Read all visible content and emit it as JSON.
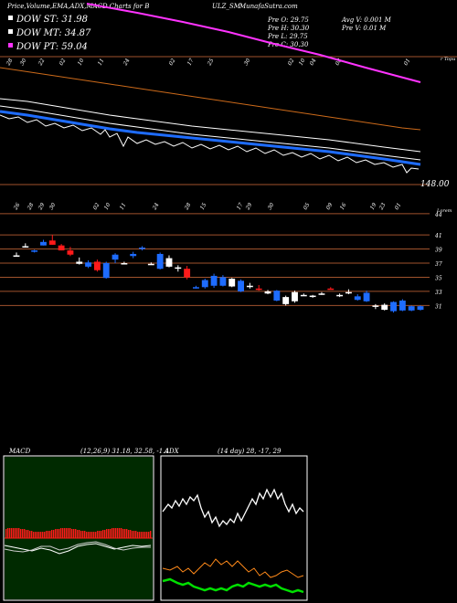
{
  "header": {
    "title": "Price,Volume,EMA,ADX,MACD Charts for B",
    "symbol": "ULZ_SM",
    "site": "MunafaSutra.com"
  },
  "legend": [
    {
      "label": "DOW ST: 31.98",
      "color": "#ffffff"
    },
    {
      "label": "DOW MT: 34.87",
      "color": "#ffffff"
    },
    {
      "label": "DOW PT: 59.04",
      "color": "#ff33ff"
    }
  ],
  "ohlc": {
    "open": "Pre  O: 29.75",
    "high": "Pre  H: 30.30",
    "low": "Pre  L: 29.75",
    "close": "Pre  C: 30.30"
  },
  "volume_info": {
    "avg": "Avg V: 0.001 M",
    "pre": "Pre  V: 0.01 M"
  },
  "upper_panel": {
    "right_label_top": "r Topu",
    "price_marker": "148.00",
    "dates": [
      "28",
      "30",
      "22",
      "02",
      "10",
      "11",
      "24",
      "02",
      "17",
      "25",
      "30",
      "02",
      "10",
      "04",
      "08",
      "01"
    ]
  },
  "candles_panel": {
    "right_label_top": "Lorem",
    "dates": [
      "26",
      "28",
      "29",
      "30",
      "02",
      "10",
      "11",
      "24",
      "28",
      "15",
      "17",
      "29",
      "30",
      "05",
      "09",
      "16",
      "19",
      "23",
      "01"
    ],
    "price_ticks": [
      "44",
      "41",
      "39",
      "37",
      "35",
      "33",
      "31"
    ]
  },
  "chart_data": {
    "type": "candlestick",
    "ylim": [
      29.5,
      44.5
    ],
    "candles": [
      {
        "o": 38.1,
        "h": 38.5,
        "l": 37.9,
        "c": 38.1,
        "color": "white"
      },
      {
        "o": 39.4,
        "h": 39.8,
        "l": 39.2,
        "c": 39.4,
        "color": "white"
      },
      {
        "o": 38.6,
        "h": 38.9,
        "l": 38.5,
        "c": 38.8,
        "color": "blue"
      },
      {
        "o": 40.0,
        "h": 40.3,
        "l": 39.5,
        "c": 39.5,
        "color": "blue"
      },
      {
        "o": 40.2,
        "h": 41.0,
        "l": 39.6,
        "c": 39.6,
        "color": "red"
      },
      {
        "o": 39.5,
        "h": 39.7,
        "l": 38.8,
        "c": 38.8,
        "color": "red"
      },
      {
        "o": 38.8,
        "h": 39.3,
        "l": 38.0,
        "c": 38.2,
        "color": "red"
      },
      {
        "o": 37.2,
        "h": 37.8,
        "l": 36.8,
        "c": 36.9,
        "color": "white"
      },
      {
        "o": 37.1,
        "h": 37.4,
        "l": 36.3,
        "c": 36.5,
        "color": "blue"
      },
      {
        "o": 36.0,
        "h": 37.5,
        "l": 35.8,
        "c": 37.2,
        "color": "red"
      },
      {
        "o": 37.0,
        "h": 37.2,
        "l": 34.8,
        "c": 34.9,
        "color": "blue"
      },
      {
        "o": 37.5,
        "h": 38.4,
        "l": 37.0,
        "c": 38.2,
        "color": "blue"
      },
      {
        "o": 37.0,
        "h": 37.2,
        "l": 36.9,
        "c": 37.0,
        "color": "white"
      },
      {
        "o": 38.0,
        "h": 38.6,
        "l": 37.7,
        "c": 38.3,
        "color": "blue"
      },
      {
        "o": 39.0,
        "h": 39.4,
        "l": 38.8,
        "c": 39.2,
        "color": "blue"
      },
      {
        "o": 36.9,
        "h": 37.1,
        "l": 36.8,
        "c": 36.9,
        "color": "white"
      },
      {
        "o": 38.3,
        "h": 38.5,
        "l": 36.1,
        "c": 36.2,
        "color": "blue"
      },
      {
        "o": 37.7,
        "h": 38.1,
        "l": 36.4,
        "c": 36.5,
        "color": "white"
      },
      {
        "o": 36.4,
        "h": 36.7,
        "l": 35.8,
        "c": 36.3,
        "color": "white"
      },
      {
        "o": 36.2,
        "h": 36.6,
        "l": 34.7,
        "c": 35.0,
        "color": "red"
      },
      {
        "o": 33.6,
        "h": 33.8,
        "l": 33.4,
        "c": 33.6,
        "color": "blue"
      },
      {
        "o": 33.6,
        "h": 34.8,
        "l": 33.4,
        "c": 34.6,
        "color": "blue"
      },
      {
        "o": 33.8,
        "h": 35.5,
        "l": 33.5,
        "c": 35.2,
        "color": "blue"
      },
      {
        "o": 35.0,
        "h": 35.3,
        "l": 33.7,
        "c": 33.8,
        "color": "blue"
      },
      {
        "o": 33.7,
        "h": 34.9,
        "l": 33.6,
        "c": 34.8,
        "color": "white"
      },
      {
        "o": 34.5,
        "h": 34.7,
        "l": 32.9,
        "c": 33.0,
        "color": "blue"
      },
      {
        "o": 33.8,
        "h": 34.2,
        "l": 33.4,
        "c": 33.7,
        "color": "white"
      },
      {
        "o": 33.4,
        "h": 33.9,
        "l": 33.1,
        "c": 33.4,
        "color": "red"
      },
      {
        "o": 32.7,
        "h": 33.2,
        "l": 32.6,
        "c": 33.0,
        "color": "white"
      },
      {
        "o": 33.1,
        "h": 33.2,
        "l": 31.6,
        "c": 31.7,
        "color": "blue"
      },
      {
        "o": 32.2,
        "h": 32.4,
        "l": 31.0,
        "c": 31.2,
        "color": "white"
      },
      {
        "o": 31.6,
        "h": 33.1,
        "l": 31.4,
        "c": 32.9,
        "color": "white"
      },
      {
        "o": 32.5,
        "h": 32.7,
        "l": 32.4,
        "c": 32.5,
        "color": "white"
      },
      {
        "o": 32.4,
        "h": 32.5,
        "l": 32.1,
        "c": 32.4,
        "color": "white"
      },
      {
        "o": 32.6,
        "h": 32.9,
        "l": 32.5,
        "c": 32.7,
        "color": "white"
      },
      {
        "o": 33.4,
        "h": 33.6,
        "l": 33.3,
        "c": 33.4,
        "color": "red"
      },
      {
        "o": 32.5,
        "h": 32.7,
        "l": 32.2,
        "c": 32.5,
        "color": "white"
      },
      {
        "o": 32.9,
        "h": 33.3,
        "l": 32.6,
        "c": 32.8,
        "color": "white"
      },
      {
        "o": 32.3,
        "h": 32.6,
        "l": 31.7,
        "c": 31.8,
        "color": "blue"
      },
      {
        "o": 32.8,
        "h": 33.1,
        "l": 31.5,
        "c": 31.6,
        "color": "blue"
      },
      {
        "o": 31.0,
        "h": 31.2,
        "l": 30.5,
        "c": 31.0,
        "color": "white"
      },
      {
        "o": 30.4,
        "h": 31.3,
        "l": 30.3,
        "c": 31.1,
        "color": "white"
      },
      {
        "o": 30.2,
        "h": 31.6,
        "l": 30.0,
        "c": 31.5,
        "color": "blue"
      },
      {
        "o": 30.3,
        "h": 31.9,
        "l": 30.2,
        "c": 31.7,
        "color": "blue"
      },
      {
        "o": 30.3,
        "h": 31.0,
        "l": 30.2,
        "c": 30.9,
        "color": "blue"
      },
      {
        "o": 30.4,
        "h": 31.0,
        "l": 30.3,
        "c": 30.9,
        "color": "blue"
      }
    ],
    "macd_label": "MACD",
    "macd_values": "(12,26,9) 31.18, 32.58, -1.4",
    "adx_label": "ADX",
    "adx_values": "(14 day) 28, -17, 29"
  },
  "colors": {
    "blue": "#1e6cff",
    "red": "#ff1a1a",
    "magenta": "#ff33ff",
    "orange": "#ff8a1a",
    "green": "#00e000",
    "grid": "#a0522d"
  }
}
